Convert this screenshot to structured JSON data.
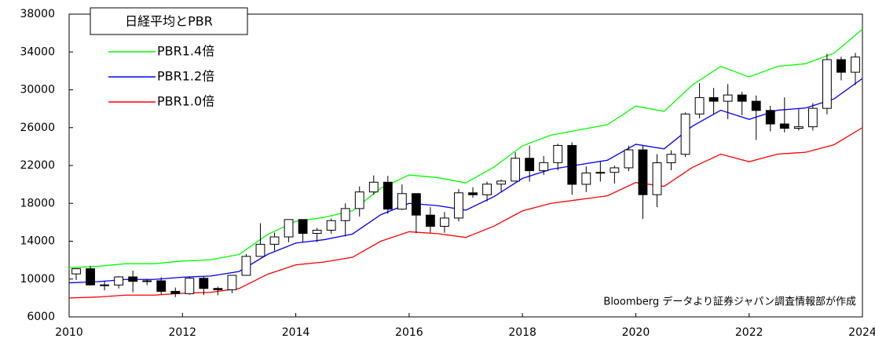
{
  "chart_data": {
    "type": "candlestick",
    "title": "日経平均とPBR",
    "annotation": "Bloomberg データより証券ジャパン調査情報部が作成",
    "xlim": [
      2010,
      2024
    ],
    "xticks": [
      2010,
      2012,
      2014,
      2016,
      2018,
      2020,
      2022,
      2024
    ],
    "ylim": [
      6000,
      38000
    ],
    "yticks": [
      6000,
      10000,
      14000,
      18000,
      22000,
      26000,
      30000,
      34000,
      38000
    ],
    "grid": false,
    "candles": {
      "up_color": "#ffffff",
      "down_color": "#000000",
      "x": [
        2010.125,
        2010.375,
        2010.625,
        2010.875,
        2011.125,
        2011.375,
        2011.625,
        2011.875,
        2012.125,
        2012.375,
        2012.625,
        2012.875,
        2013.125,
        2013.375,
        2013.625,
        2013.875,
        2014.125,
        2014.375,
        2014.625,
        2014.875,
        2015.125,
        2015.375,
        2015.625,
        2015.875,
        2016.125,
        2016.375,
        2016.625,
        2016.875,
        2017.125,
        2017.375,
        2017.625,
        2017.875,
        2018.125,
        2018.375,
        2018.625,
        2018.875,
        2019.125,
        2019.375,
        2019.625,
        2019.875,
        2020.125,
        2020.375,
        2020.625,
        2020.875,
        2021.125,
        2021.375,
        2021.625,
        2021.875,
        2022.125,
        2022.375,
        2022.625,
        2022.875,
        2023.125,
        2023.375,
        2023.625,
        2023.875
      ],
      "open": [
        10546,
        11089,
        9382,
        9369,
        10228,
        9755,
        9816,
        8700,
        8455,
        10083,
        9006,
        8870,
        10395,
        12397,
        13677,
        14455,
        16291,
        14827,
        15162,
        16173,
        17450,
        19206,
        20235,
        17388,
        19033,
        16758,
        15575,
        16449,
        19114,
        18909,
        20033,
        20356,
        22764,
        21454,
        22304,
        24120,
        20014,
        21205,
        21275,
        21755,
        23656,
        18917,
        22288,
        23185,
        27444,
        29178,
        28791,
        29452,
        28791,
        27821,
        26393,
        25937,
        26094,
        28041,
        33189,
        31857
      ],
      "high": [
        11150,
        11400,
        9800,
        10300,
        10900,
        10000,
        10200,
        9100,
        10250,
        10250,
        9200,
        10400,
        12650,
        15900,
        14900,
        16300,
        16300,
        15400,
        16400,
        18000,
        19800,
        20950,
        20900,
        20000,
        19000,
        17600,
        17100,
        19500,
        19700,
        20300,
        20500,
        23400,
        24100,
        23000,
        24300,
        24450,
        21900,
        22400,
        22000,
        24100,
        24100,
        23200,
        23600,
        27600,
        30700,
        30200,
        30600,
        29800,
        29400,
        28300,
        29200,
        28000,
        28600,
        33800,
        33500,
        33900
      ],
      "low": [
        9900,
        9300,
        8800,
        9000,
        8600,
        9350,
        8400,
        8100,
        8350,
        8300,
        8300,
        8500,
        10350,
        12400,
        13000,
        13900,
        13900,
        13900,
        14800,
        14500,
        16600,
        18900,
        16900,
        17300,
        14850,
        14900,
        14900,
        16100,
        18600,
        18200,
        19200,
        20300,
        20300,
        21000,
        21500,
        18900,
        19200,
        20300,
        20100,
        21400,
        16350,
        17600,
        21500,
        22900,
        27000,
        27400,
        26900,
        27300,
        24700,
        25600,
        25500,
        25700,
        25700,
        27400,
        31000,
        30500
      ],
      "close": [
        11089,
        9382,
        9369,
        10228,
        9755,
        9816,
        8700,
        8455,
        10083,
        9006,
        8870,
        10395,
        12397,
        13677,
        14455,
        16291,
        14827,
        15162,
        16173,
        17450,
        19206,
        20235,
        17388,
        19033,
        16758,
        15575,
        16449,
        19114,
        18909,
        20033,
        20356,
        22764,
        21454,
        22304,
        24120,
        20014,
        21205,
        21275,
        21755,
        23656,
        18917,
        22288,
        23185,
        27444,
        29178,
        28791,
        29452,
        28791,
        27821,
        26393,
        25937,
        26094,
        28041,
        33189,
        31857,
        33464
      ]
    },
    "x": [
      2010,
      2010.5,
      2011,
      2011.5,
      2012,
      2012.5,
      2013,
      2013.5,
      2014,
      2014.5,
      2015,
      2015.5,
      2016,
      2016.5,
      2017,
      2017.5,
      2018,
      2018.5,
      2019,
      2019.5,
      2020,
      2020.5,
      2021,
      2021.5,
      2022,
      2022.5,
      2023,
      2023.5,
      2024
    ],
    "series": [
      {
        "name": "PBR1.4倍",
        "color": "#00ff00",
        "values": [
          11200,
          11340,
          11620,
          11620,
          11900,
          12040,
          12600,
          14700,
          16100,
          16520,
          17220,
          19600,
          21000,
          20720,
          20160,
          21840,
          24080,
          25200,
          25760,
          26320,
          28280,
          27720,
          30520,
          32480,
          31360,
          32480,
          32760,
          33880,
          36400
        ]
      },
      {
        "name": "PBR1.2倍",
        "color": "#0000ff",
        "values": [
          9600,
          9720,
          9960,
          9960,
          10200,
          10320,
          10800,
          12600,
          13800,
          14160,
          14760,
          16800,
          18000,
          17760,
          17280,
          18720,
          20640,
          21600,
          22080,
          22560,
          24240,
          23760,
          26160,
          27840,
          26880,
          27840,
          28080,
          29040,
          31200
        ]
      },
      {
        "name": "PBR1.0倍",
        "color": "#ff0000",
        "values": [
          8000,
          8100,
          8300,
          8300,
          8500,
          8600,
          9000,
          10500,
          11500,
          11800,
          12300,
          14000,
          15000,
          14800,
          14400,
          15600,
          17200,
          18000,
          18400,
          18800,
          20200,
          19800,
          21800,
          23200,
          22400,
          23200,
          23400,
          24200,
          26000
        ]
      }
    ]
  }
}
